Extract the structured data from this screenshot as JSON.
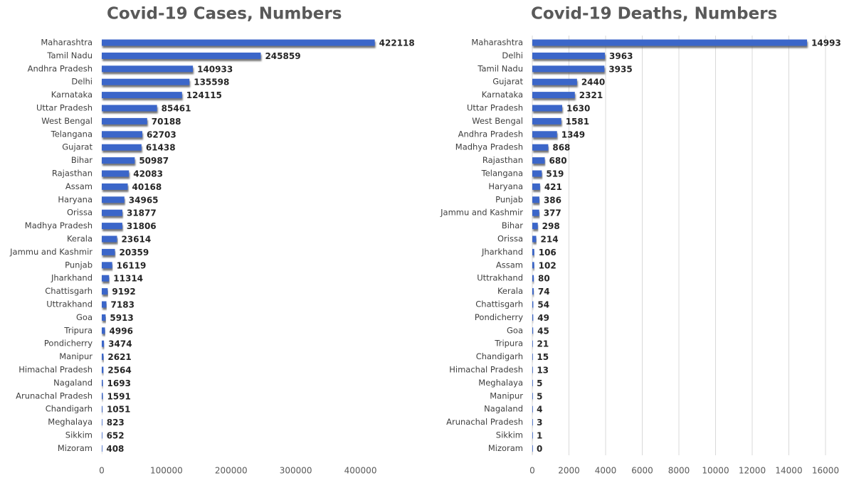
{
  "chart_data": [
    {
      "type": "bar",
      "orientation": "horizontal",
      "title": "Covid-19 Cases, Numbers",
      "color": "#3a66c9",
      "grid": false,
      "categories": [
        "Maharashtra",
        "Tamil Nadu",
        "Andhra Pradesh",
        "Delhi",
        "Karnataka",
        "Uttar Pradesh",
        "West Bengal",
        "Telangana",
        "Gujarat",
        "Bihar",
        "Rajasthan",
        "Assam",
        "Haryana",
        "Orissa",
        "Madhya Pradesh",
        "Kerala",
        "Jammu and Kashmir",
        "Punjab",
        "Jharkhand",
        "Chattisgarh",
        "Uttrakhand",
        "Goa",
        "Tripura",
        "Pondicherry",
        "Manipur",
        "Himachal Pradesh",
        "Nagaland",
        "Arunachal Pradesh",
        "Chandigarh",
        "Meghalaya",
        "Sikkim",
        "Mizoram"
      ],
      "values": [
        422118,
        245859,
        140933,
        135598,
        124115,
        85461,
        70188,
        62703,
        61438,
        50987,
        42083,
        40168,
        34965,
        31877,
        31806,
        23614,
        20359,
        16119,
        11314,
        9192,
        7183,
        5913,
        4996,
        3474,
        2621,
        2564,
        1693,
        1591,
        1051,
        823,
        652,
        408
      ],
      "xlim": [
        0,
        450000
      ],
      "xticks": [
        0,
        100000,
        200000,
        300000,
        400000
      ]
    },
    {
      "type": "bar",
      "orientation": "horizontal",
      "title": "Covid-19 Deaths, Numbers",
      "color": "#3a66c9",
      "grid": true,
      "categories": [
        "Maharashtra",
        "Delhi",
        "Tamil Nadu",
        "Gujarat",
        "Karnataka",
        "Uttar Pradesh",
        "West Bengal",
        "Andhra Pradesh",
        "Madhya Pradesh",
        "Rajasthan",
        "Telangana",
        "Haryana",
        "Punjab",
        "Jammu and Kashmir",
        "Bihar",
        "Orissa",
        "Jharkhand",
        "Assam",
        "Uttrakhand",
        "Kerala",
        "Chattisgarh",
        "Pondicherry",
        "Goa",
        "Tripura",
        "Chandigarh",
        "Himachal Pradesh",
        "Meghalaya",
        "Manipur",
        "Nagaland",
        "Arunachal Pradesh",
        "Sikkim",
        "Mizoram"
      ],
      "values": [
        14993,
        3963,
        3935,
        2440,
        2321,
        1630,
        1581,
        1349,
        868,
        680,
        519,
        421,
        386,
        377,
        298,
        214,
        106,
        102,
        80,
        74,
        54,
        49,
        45,
        21,
        15,
        13,
        5,
        5,
        4,
        3,
        1,
        0
      ],
      "xlim": [
        0,
        16000
      ],
      "xticks": [
        0,
        2000,
        4000,
        6000,
        8000,
        10000,
        12000,
        14000,
        16000
      ]
    }
  ]
}
